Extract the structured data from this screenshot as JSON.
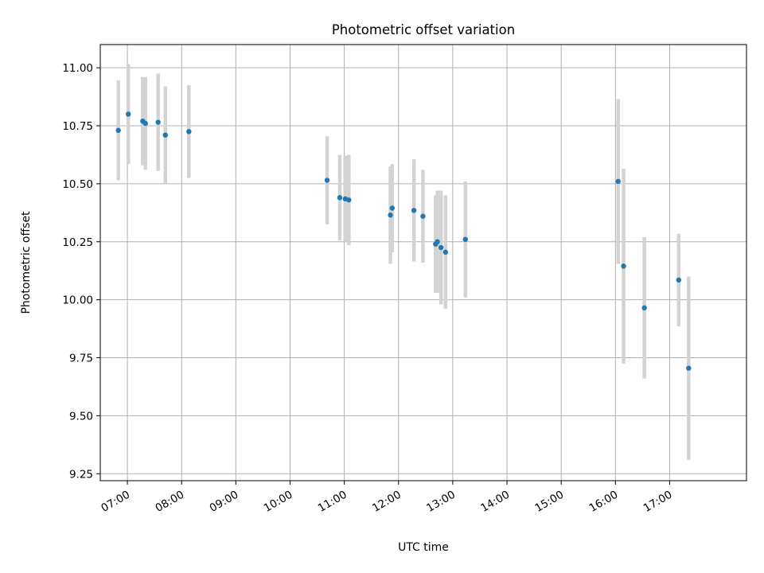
{
  "chart_data": {
    "type": "scatter",
    "title": "Photometric offset variation",
    "xlabel": "UTC time",
    "ylabel": "Photometric offset",
    "xlim": [
      "06:30",
      "18:25"
    ],
    "ylim": [
      9.22,
      11.1
    ],
    "grid": true,
    "legend": "none",
    "x_ticks": [
      "07:00",
      "08:00",
      "09:00",
      "10:00",
      "11:00",
      "12:00",
      "13:00",
      "14:00",
      "15:00",
      "16:00",
      "17:00"
    ],
    "y_ticks": [
      "9.25",
      "9.50",
      "9.75",
      "10.00",
      "10.25",
      "10.50",
      "10.75",
      "11.00"
    ],
    "colors": {
      "points": "#1f77b4",
      "error_bars": "#d3d3d3",
      "grid": "#b0b0b0"
    },
    "series": [
      {
        "points": [
          {
            "x": "06:50",
            "y": 10.73,
            "err": 0.215
          },
          {
            "x": "07:01",
            "y": 10.8,
            "err": 0.215
          },
          {
            "x": "07:17",
            "y": 10.77,
            "err": 0.19
          },
          {
            "x": "07:20",
            "y": 10.76,
            "err": 0.2
          },
          {
            "x": "07:34",
            "y": 10.765,
            "err": 0.21
          },
          {
            "x": "07:42",
            "y": 10.71,
            "err": 0.21
          },
          {
            "x": "08:08",
            "y": 10.725,
            "err": 0.2
          },
          {
            "x": "10:41",
            "y": 10.515,
            "err": 0.19
          },
          {
            "x": "10:55",
            "y": 10.44,
            "err": 0.185
          },
          {
            "x": "11:01",
            "y": 10.435,
            "err": 0.185
          },
          {
            "x": "11:05",
            "y": 10.43,
            "err": 0.195
          },
          {
            "x": "11:51",
            "y": 10.365,
            "err": 0.21
          },
          {
            "x": "11:53",
            "y": 10.395,
            "err": 0.19
          },
          {
            "x": "12:17",
            "y": 10.385,
            "err": 0.22
          },
          {
            "x": "12:27",
            "y": 10.36,
            "err": 0.2
          },
          {
            "x": "12:41",
            "y": 10.24,
            "err": 0.21
          },
          {
            "x": "12:43",
            "y": 10.25,
            "err": 0.22
          },
          {
            "x": "12:47",
            "y": 10.225,
            "err": 0.245
          },
          {
            "x": "12:52",
            "y": 10.205,
            "err": 0.245
          },
          {
            "x": "13:14",
            "y": 10.26,
            "err": 0.25
          },
          {
            "x": "16:03",
            "y": 10.51,
            "err": 0.355
          },
          {
            "x": "16:09",
            "y": 10.145,
            "err": 0.42
          },
          {
            "x": "16:32",
            "y": 9.965,
            "err": 0.305
          },
          {
            "x": "17:10",
            "y": 10.085,
            "err": 0.2
          },
          {
            "x": "17:21",
            "y": 9.705,
            "err": 0.395
          }
        ]
      }
    ]
  }
}
